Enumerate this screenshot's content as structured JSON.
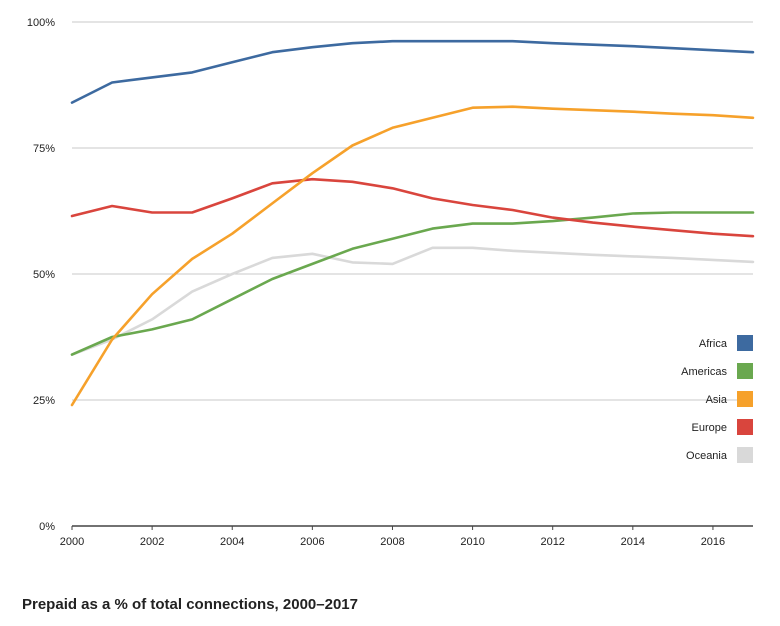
{
  "chart_data": {
    "type": "line",
    "title": "Prepaid as a % of total connections, 2000–2017",
    "x": [
      2000,
      2001,
      2002,
      2003,
      2004,
      2005,
      2006,
      2007,
      2008,
      2009,
      2010,
      2011,
      2012,
      2013,
      2014,
      2015,
      2016,
      2017
    ],
    "xlim": [
      2000,
      2017
    ],
    "ylim": [
      0,
      100
    ],
    "x_ticks": [
      "2000",
      "2002",
      "2004",
      "2006",
      "2008",
      "2010",
      "2012",
      "2014",
      "2016"
    ],
    "x_tick_values": [
      2000,
      2002,
      2004,
      2006,
      2008,
      2010,
      2012,
      2014,
      2016
    ],
    "y_ticks": [
      "0%",
      "25%",
      "50%",
      "75%",
      "100%"
    ],
    "y_tick_values": [
      0,
      25,
      50,
      75,
      100
    ],
    "grid": "horizontal",
    "legend_position": "right",
    "series": [
      {
        "name": "Africa",
        "color": "#3d6aa0",
        "values": [
          84,
          88,
          89,
          90,
          92,
          94,
          95,
          95.8,
          96.2,
          96.2,
          96.2,
          96.2,
          95.8,
          95.5,
          95.2,
          94.8,
          94.4,
          94
        ]
      },
      {
        "name": "Americas",
        "color": "#6aa84f",
        "values": [
          34,
          37.5,
          39,
          41,
          45,
          49,
          52,
          55,
          57,
          59,
          60,
          60,
          60.5,
          61.2,
          62,
          62.2,
          62.2,
          62.2
        ]
      },
      {
        "name": "Asia",
        "color": "#f6a12b",
        "values": [
          24,
          37,
          46,
          53,
          58,
          64,
          70,
          75.5,
          79,
          81,
          83,
          83.2,
          82.8,
          82.5,
          82.2,
          81.8,
          81.5,
          81
        ]
      },
      {
        "name": "Europe",
        "color": "#d9453d",
        "values": [
          61.5,
          63.5,
          62.2,
          62.2,
          65,
          68,
          68.8,
          68.3,
          67,
          65,
          63.7,
          62.7,
          61.2,
          60.2,
          59.4,
          58.7,
          58,
          57.5
        ]
      },
      {
        "name": "Oceania",
        "color": "#d9d9d9",
        "values": [
          34,
          37,
          41,
          46.5,
          50,
          53.2,
          54,
          52.3,
          52,
          55.2,
          55.2,
          54.6,
          54.2,
          53.8,
          53.5,
          53.2,
          52.8,
          52.4
        ]
      }
    ]
  }
}
